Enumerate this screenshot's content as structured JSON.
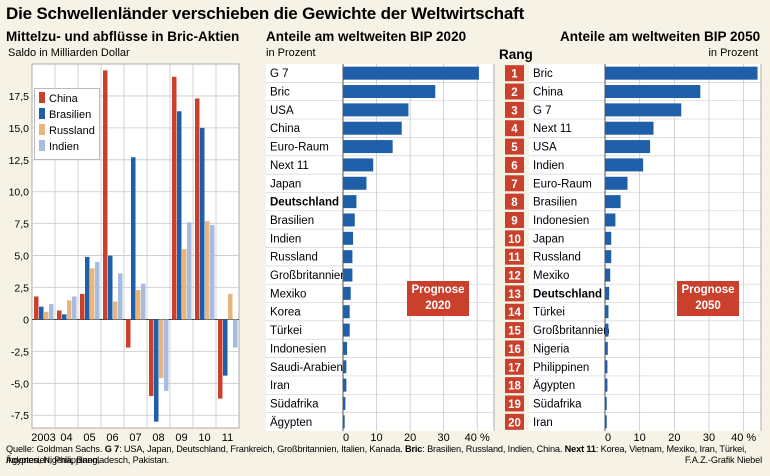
{
  "page": {
    "title": "Die Schwellenländer verschieben die Gewichte der Weltwirtschaft",
    "source_label": "Quelle: Goldman Sachs.",
    "source_g7_key": "G 7",
    "source_g7_text": ": USA, Japan, Deutschland, Frankreich, Großbritannien, Italien, Kanada.",
    "source_bric_key": "Bric",
    "source_bric_text": ": Brasilien, Russland, Indien, China.",
    "source_next11_key": "Next 11",
    "source_next11_text": ": Korea, Vietnam, Mexiko, Iran, Türkei, Indonesien, Philippinen,",
    "source_line2": "Ägypten, Nigeria, Bangladesch, Pakistan.",
    "credit": "F.A.Z.-Grafik Niebel",
    "rank_header": "Rang",
    "ranks": [
      "1",
      "2",
      "3",
      "4",
      "5",
      "6",
      "7",
      "8",
      "9",
      "10",
      "11",
      "12",
      "13",
      "14",
      "15",
      "16",
      "17",
      "18",
      "19",
      "20"
    ]
  },
  "chart_data": [
    {
      "type": "bar",
      "title": "Mittelzu- und abflüsse in Bric-Aktien",
      "subtitle": "Saldo in Milliarden Dollar",
      "categories": [
        "2003",
        "04",
        "05",
        "06",
        "07",
        "08",
        "09",
        "10",
        "11"
      ],
      "ylim": [
        -8.5,
        20
      ],
      "yticks": [
        -7.5,
        -5,
        -2.5,
        0,
        2.5,
        5,
        7.5,
        10,
        12.5,
        15,
        17.5
      ],
      "ytick_labels": [
        "-7,5",
        "-5,0",
        "-2,5",
        "0",
        "2,5",
        "5,0",
        "7,5",
        "10,0",
        "12,5",
        "15,0",
        "17,5"
      ],
      "legend_position": "top-left",
      "series": [
        {
          "name": "China",
          "color": "#c9402c",
          "values": [
            1.8,
            0.7,
            2.0,
            19.5,
            -2.2,
            -6.0,
            19.0,
            17.3,
            -6.2
          ]
        },
        {
          "name": "Brasilien",
          "color": "#1f5ea8",
          "values": [
            1.0,
            0.4,
            4.9,
            5.0,
            12.7,
            -8.0,
            16.3,
            15.0,
            -4.4
          ]
        },
        {
          "name": "Russland",
          "color": "#e9b57f",
          "values": [
            0.6,
            1.5,
            4.0,
            1.4,
            2.3,
            -4.6,
            5.5,
            7.7,
            2.0
          ]
        },
        {
          "name": "Indien",
          "color": "#a7bde0",
          "values": [
            1.2,
            1.8,
            4.5,
            3.6,
            2.8,
            -5.6,
            7.6,
            7.4,
            -2.2
          ]
        }
      ]
    },
    {
      "type": "bar",
      "orientation": "horizontal",
      "title": "Anteile am weltweiten BIP 2020",
      "unit_label": "in Prozent",
      "xlim": [
        0,
        45
      ],
      "xticks": [
        0,
        10,
        20,
        30,
        40
      ],
      "xtick_labels": [
        "0",
        "10",
        "20",
        "30",
        "40 %"
      ],
      "categories": [
        "G 7",
        "Bric",
        "USA",
        "China",
        "Euro-Raum",
        "Next 11",
        "Japan",
        "Deutschland",
        "Brasilien",
        "Indien",
        "Russland",
        "Großbritannien",
        "Mexiko",
        "Korea",
        "Türkei",
        "Indonesien",
        "Saudi-Arabien",
        "Iran",
        "Südafrika",
        "Ägypten"
      ],
      "bold_categories": [
        "Deutschland"
      ],
      "values": [
        40.5,
        27.5,
        19.5,
        17.5,
        14.8,
        9.0,
        7.0,
        4.0,
        3.5,
        3.0,
        2.8,
        2.8,
        2.3,
        2.0,
        2.0,
        1.2,
        1.0,
        1.0,
        0.7,
        0.5
      ],
      "color": "#1f5ea8",
      "annotation": "Prognose 2020",
      "annotation_lines": [
        "Prognose",
        "2020"
      ]
    },
    {
      "type": "bar",
      "orientation": "horizontal",
      "title": "Anteile am weltweiten BIP 2050",
      "unit_label": "in Prozent",
      "xlim": [
        0,
        45
      ],
      "xticks": [
        0,
        10,
        20,
        30,
        40
      ],
      "xtick_labels": [
        "0",
        "10",
        "20",
        "30",
        "40 %"
      ],
      "categories": [
        "Bric",
        "China",
        "G 7",
        "Next 11",
        "USA",
        "Indien",
        "Euro-Raum",
        "Brasilien",
        "Indonesien",
        "Japan",
        "Russland",
        "Mexiko",
        "Deutschland",
        "Türkei",
        "Großbritannien",
        "Nigeria",
        "Philippinen",
        "Ägypten",
        "Südafrika",
        "Iran"
      ],
      "bold_categories": [
        "Deutschland"
      ],
      "values": [
        44.0,
        27.5,
        22.0,
        14.0,
        13.0,
        11.0,
        6.5,
        4.5,
        3.0,
        1.8,
        1.8,
        1.5,
        1.2,
        1.0,
        1.0,
        0.8,
        0.7,
        0.7,
        0.5,
        0.5
      ],
      "color": "#1f5ea8",
      "annotation": "Prognose 2050",
      "annotation_lines": [
        "Prognose",
        "2050"
      ]
    }
  ]
}
